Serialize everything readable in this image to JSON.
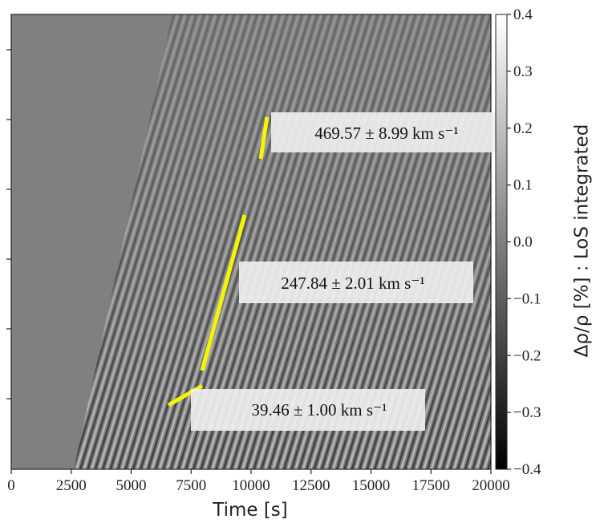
{
  "chart_data": {
    "type": "heatmap",
    "xlabel": "Time [s]",
    "xlim": [
      0,
      20000
    ],
    "xticks": [
      0,
      2500,
      5000,
      7500,
      10000,
      12500,
      15000,
      17500,
      20000
    ],
    "colorbar": {
      "label": "Δρ/ρ [%] : LoS integrated",
      "lim": [
        -0.4,
        0.4
      ],
      "ticks": [
        0.4,
        0.3,
        0.2,
        0.1,
        {
          "value": 0,
          "label": "0.0"
        },
        {
          "value": -0.1,
          "label": "−0.1"
        },
        {
          "value": -0.2,
          "label": "−0.2"
        },
        {
          "value": -0.3,
          "label": "−0.3"
        },
        {
          "value": -0.4,
          "label": "−0.4"
        }
      ]
    },
    "annotations": [
      "469.57 ± 8.99 km s⁻¹",
      "247.84 ± 2.01 km s⁻¹",
      "39.46 ± 1.00 km s⁻¹"
    ]
  }
}
